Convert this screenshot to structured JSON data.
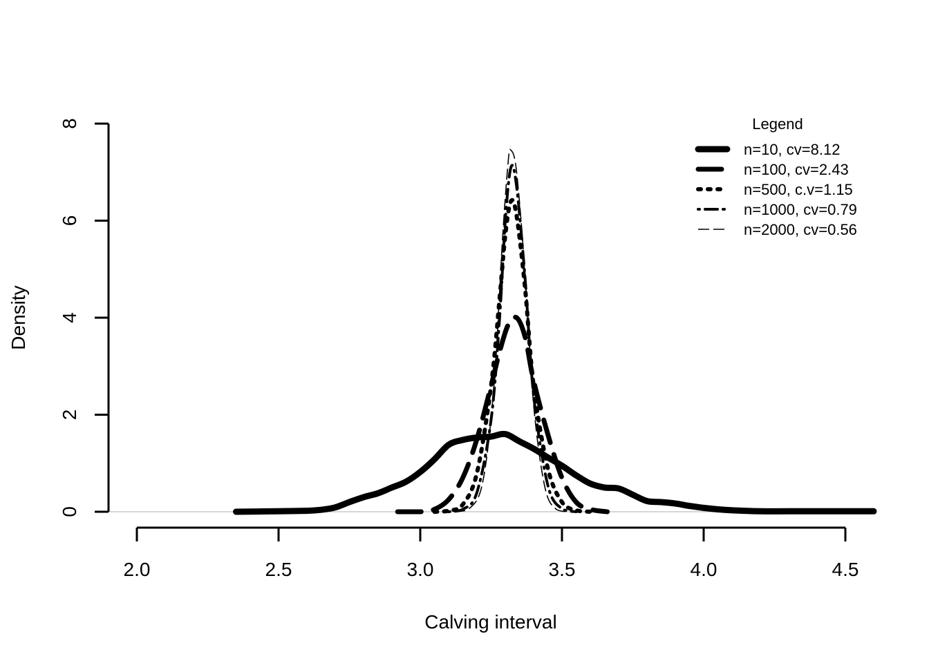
{
  "chart_data": {
    "type": "line",
    "title": "",
    "xlabel": "Calving interval",
    "ylabel": "Density",
    "xlim": [
      2.0,
      4.6
    ],
    "ylim": [
      0,
      8
    ],
    "x_ticks": [
      2.0,
      2.5,
      3.0,
      3.5,
      4.0,
      4.5
    ],
    "x_tick_labels": [
      "2.0",
      "2.5",
      "3.0",
      "3.5",
      "4.0",
      "4.5"
    ],
    "y_ticks": [
      0,
      2,
      4,
      6,
      8
    ],
    "y_tick_labels": [
      "0",
      "2",
      "4",
      "6",
      "8"
    ],
    "grid": false,
    "legend": {
      "title": "Legend",
      "position": "top-right"
    },
    "series": [
      {
        "name": "n=10, cv=8.12",
        "style": "solid-thick",
        "points": [
          [
            2.35,
            0
          ],
          [
            2.5,
            0.01
          ],
          [
            2.6,
            0.02
          ],
          [
            2.65,
            0.04
          ],
          [
            2.7,
            0.09
          ],
          [
            2.75,
            0.2
          ],
          [
            2.8,
            0.3
          ],
          [
            2.85,
            0.38
          ],
          [
            2.9,
            0.5
          ],
          [
            2.95,
            0.62
          ],
          [
            3.0,
            0.82
          ],
          [
            3.05,
            1.08
          ],
          [
            3.1,
            1.38
          ],
          [
            3.15,
            1.48
          ],
          [
            3.2,
            1.53
          ],
          [
            3.25,
            1.55
          ],
          [
            3.3,
            1.6
          ],
          [
            3.35,
            1.45
          ],
          [
            3.4,
            1.3
          ],
          [
            3.45,
            1.12
          ],
          [
            3.5,
            0.95
          ],
          [
            3.55,
            0.75
          ],
          [
            3.6,
            0.58
          ],
          [
            3.65,
            0.5
          ],
          [
            3.7,
            0.48
          ],
          [
            3.75,
            0.35
          ],
          [
            3.8,
            0.22
          ],
          [
            3.85,
            0.2
          ],
          [
            3.9,
            0.17
          ],
          [
            3.95,
            0.12
          ],
          [
            4.0,
            0.08
          ],
          [
            4.05,
            0.05
          ],
          [
            4.1,
            0.03
          ],
          [
            4.2,
            0.01
          ],
          [
            4.3,
            0.01
          ],
          [
            4.45,
            0.01
          ],
          [
            4.6,
            0.01
          ]
        ]
      },
      {
        "name": "n=100, cv=2.43",
        "style": "long-dash",
        "points": [
          [
            2.92,
            0
          ],
          [
            3.0,
            0
          ],
          [
            3.05,
            0.05
          ],
          [
            3.1,
            0.25
          ],
          [
            3.15,
            0.7
          ],
          [
            3.2,
            1.5
          ],
          [
            3.25,
            2.6
          ],
          [
            3.28,
            3.3
          ],
          [
            3.31,
            3.85
          ],
          [
            3.34,
            4.0
          ],
          [
            3.37,
            3.6
          ],
          [
            3.4,
            2.7
          ],
          [
            3.45,
            1.6
          ],
          [
            3.5,
            0.7
          ],
          [
            3.55,
            0.2
          ],
          [
            3.6,
            0.05
          ],
          [
            3.66,
            0
          ]
        ]
      },
      {
        "name": "n=500, c.v=1.15",
        "style": "dotted",
        "points": [
          [
            3.05,
            0
          ],
          [
            3.1,
            0.02
          ],
          [
            3.15,
            0.15
          ],
          [
            3.2,
            0.8
          ],
          [
            3.25,
            2.6
          ],
          [
            3.28,
            4.4
          ],
          [
            3.3,
            5.7
          ],
          [
            3.32,
            6.4
          ],
          [
            3.34,
            6.1
          ],
          [
            3.37,
            4.6
          ],
          [
            3.4,
            2.6
          ],
          [
            3.45,
            0.9
          ],
          [
            3.5,
            0.2
          ],
          [
            3.55,
            0.03
          ],
          [
            3.6,
            0
          ]
        ]
      },
      {
        "name": "n=1000, cv=0.79",
        "style": "dot-dash",
        "points": [
          [
            3.1,
            0
          ],
          [
            3.15,
            0.05
          ],
          [
            3.2,
            0.4
          ],
          [
            3.25,
            1.9
          ],
          [
            3.28,
            4.0
          ],
          [
            3.3,
            6.0
          ],
          [
            3.32,
            7.1
          ],
          [
            3.34,
            6.7
          ],
          [
            3.37,
            4.8
          ],
          [
            3.4,
            2.4
          ],
          [
            3.45,
            0.55
          ],
          [
            3.5,
            0.06
          ],
          [
            3.55,
            0
          ]
        ]
      },
      {
        "name": "n=2000, cv=0.56",
        "style": "thin-dash",
        "points": [
          [
            3.12,
            0
          ],
          [
            3.17,
            0.05
          ],
          [
            3.22,
            0.6
          ],
          [
            3.26,
            2.6
          ],
          [
            3.29,
            5.6
          ],
          [
            3.31,
            7.2
          ],
          [
            3.32,
            7.45
          ],
          [
            3.34,
            7.0
          ],
          [
            3.37,
            4.9
          ],
          [
            3.4,
            2.2
          ],
          [
            3.44,
            0.5
          ],
          [
            3.48,
            0.05
          ],
          [
            3.52,
            0
          ]
        ]
      }
    ]
  }
}
